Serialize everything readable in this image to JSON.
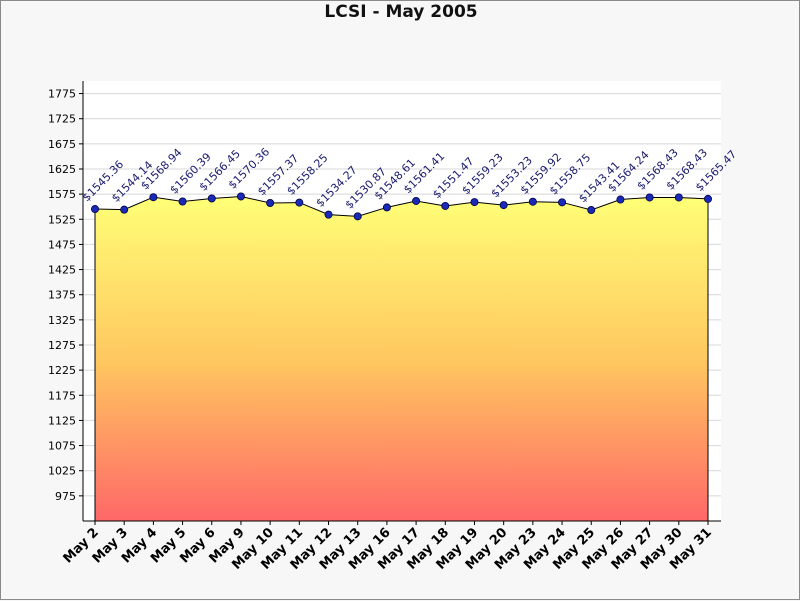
{
  "chart_data": {
    "type": "area",
    "title": "LCSI - May 2005",
    "xlabel": "",
    "ylabel": "",
    "categories": [
      "May 2",
      "May 3",
      "May 4",
      "May 5",
      "May 6",
      "May 9",
      "May 10",
      "May 11",
      "May 12",
      "May 13",
      "May 16",
      "May 17",
      "May 18",
      "May 19",
      "May 20",
      "May 23",
      "May 24",
      "May 25",
      "May 26",
      "May 27",
      "May 30",
      "May 31"
    ],
    "values": [
      1545.36,
      1544.14,
      1568.94,
      1560.39,
      1566.45,
      1570.36,
      1557.37,
      1558.25,
      1534.27,
      1530.87,
      1548.61,
      1561.41,
      1551.47,
      1559.23,
      1553.23,
      1559.92,
      1558.75,
      1543.41,
      1564.24,
      1568.43,
      1568.43,
      1565.47
    ],
    "data_labels": [
      "$1545.36",
      "$1544.14",
      "$1568.94",
      "$1560.39",
      "$1566.45",
      "$1570.36",
      "$1557.37",
      "$1558.25",
      "$1534.27",
      "$1530.87",
      "$1548.61",
      "$1561.41",
      "$1551.47",
      "$1559.23",
      "$1553.23",
      "$1559.92",
      "$1558.75",
      "$1543.41",
      "$1564.24",
      "$1568.43",
      "$1568.43",
      "$1565.47"
    ],
    "yticks": [
      975,
      1025,
      1075,
      1125,
      1175,
      1225,
      1275,
      1325,
      1375,
      1425,
      1475,
      1525,
      1575,
      1625,
      1675,
      1725,
      1775
    ],
    "ylim": [
      925,
      1800
    ],
    "grid": true,
    "legend": "none",
    "colors": {
      "gradient_top": "#ffff77",
      "gradient_mid": "#ffc860",
      "gradient_bottom": "#ff6868",
      "line": "#000000",
      "marker": "#1a2ab8",
      "label": "#1a1a6e",
      "grid": "#d8d8d8"
    }
  }
}
